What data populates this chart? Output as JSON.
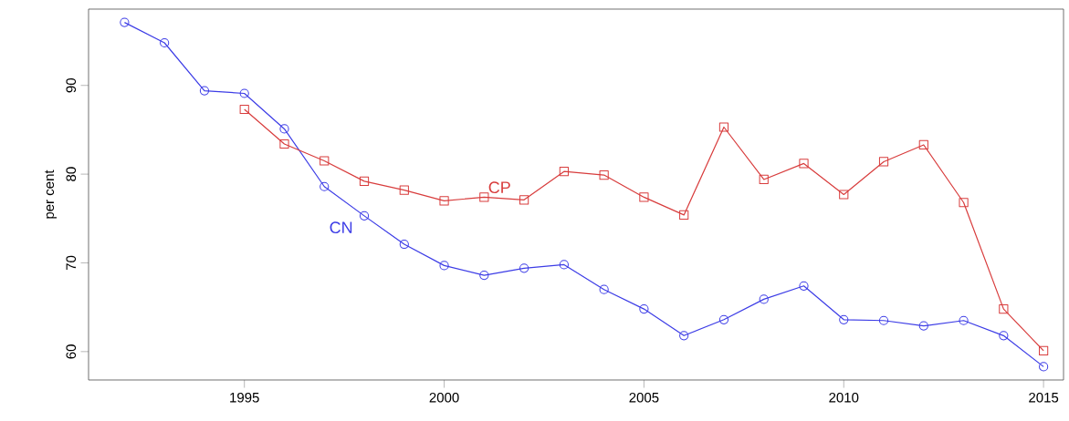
{
  "chart_data": {
    "type": "line",
    "ylabel": "per cent",
    "x": [
      1992,
      1993,
      1994,
      1995,
      1996,
      1997,
      1998,
      1999,
      2000,
      2001,
      2002,
      2003,
      2004,
      2005,
      2006,
      2007,
      2008,
      2009,
      2010,
      2011,
      2012,
      2013,
      2014,
      2015
    ],
    "series": [
      {
        "name": "CN",
        "color": "#3c3ce6",
        "marker": "circle",
        "values": [
          97.1,
          94.8,
          89.4,
          89.1,
          85.1,
          78.6,
          75.3,
          72.1,
          69.7,
          68.6,
          69.4,
          69.8,
          67.0,
          64.8,
          61.8,
          63.6,
          65.9,
          67.4,
          63.6,
          63.5,
          62.9,
          63.5,
          61.8,
          58.3
        ]
      },
      {
        "name": "CP",
        "color": "#d83c3c",
        "marker": "square",
        "values": [
          null,
          null,
          null,
          87.3,
          83.4,
          81.5,
          79.2,
          78.2,
          77.0,
          77.4,
          77.1,
          80.3,
          79.9,
          77.4,
          75.4,
          85.3,
          79.4,
          81.2,
          77.7,
          81.4,
          83.3,
          76.8,
          64.8,
          60.1
        ]
      }
    ],
    "xlim": [
      1991.1,
      2015.5
    ],
    "ylim": [
      56.8,
      98.6
    ],
    "xticks": [
      1995,
      2000,
      2005,
      2010,
      2015
    ],
    "yticks": [
      60,
      70,
      80,
      90
    ],
    "line_style": "solid"
  }
}
